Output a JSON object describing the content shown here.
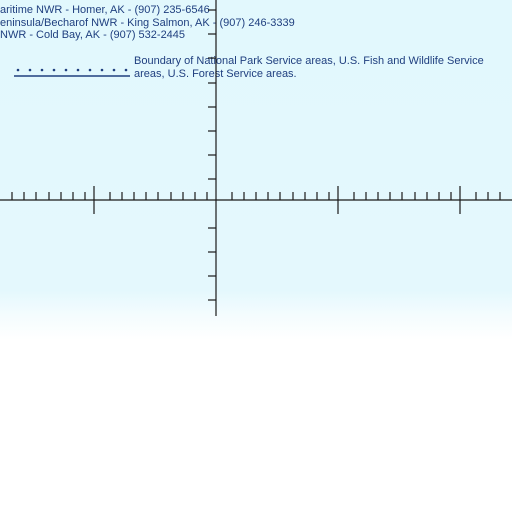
{
  "map_text": {
    "contacts": [
      "aritime NWR - Homer, AK - (907) 235-6546",
      "eninsula/Becharof NWR - King Salmon, AK - (907) 246-3339",
      "NWR - Cold Bay, AK - (907) 532-2445"
    ],
    "legend": {
      "boundary_label": "Boundary of National Park Service areas, U.S. Fish and Wildlife Service areas, U.S. Forest Service areas."
    }
  },
  "colors": {
    "text": "#1f3f7f",
    "boundary_symbol": "#1f3f7f",
    "grid_lines": "#1a1a1a",
    "background": "#e2f8fd"
  }
}
